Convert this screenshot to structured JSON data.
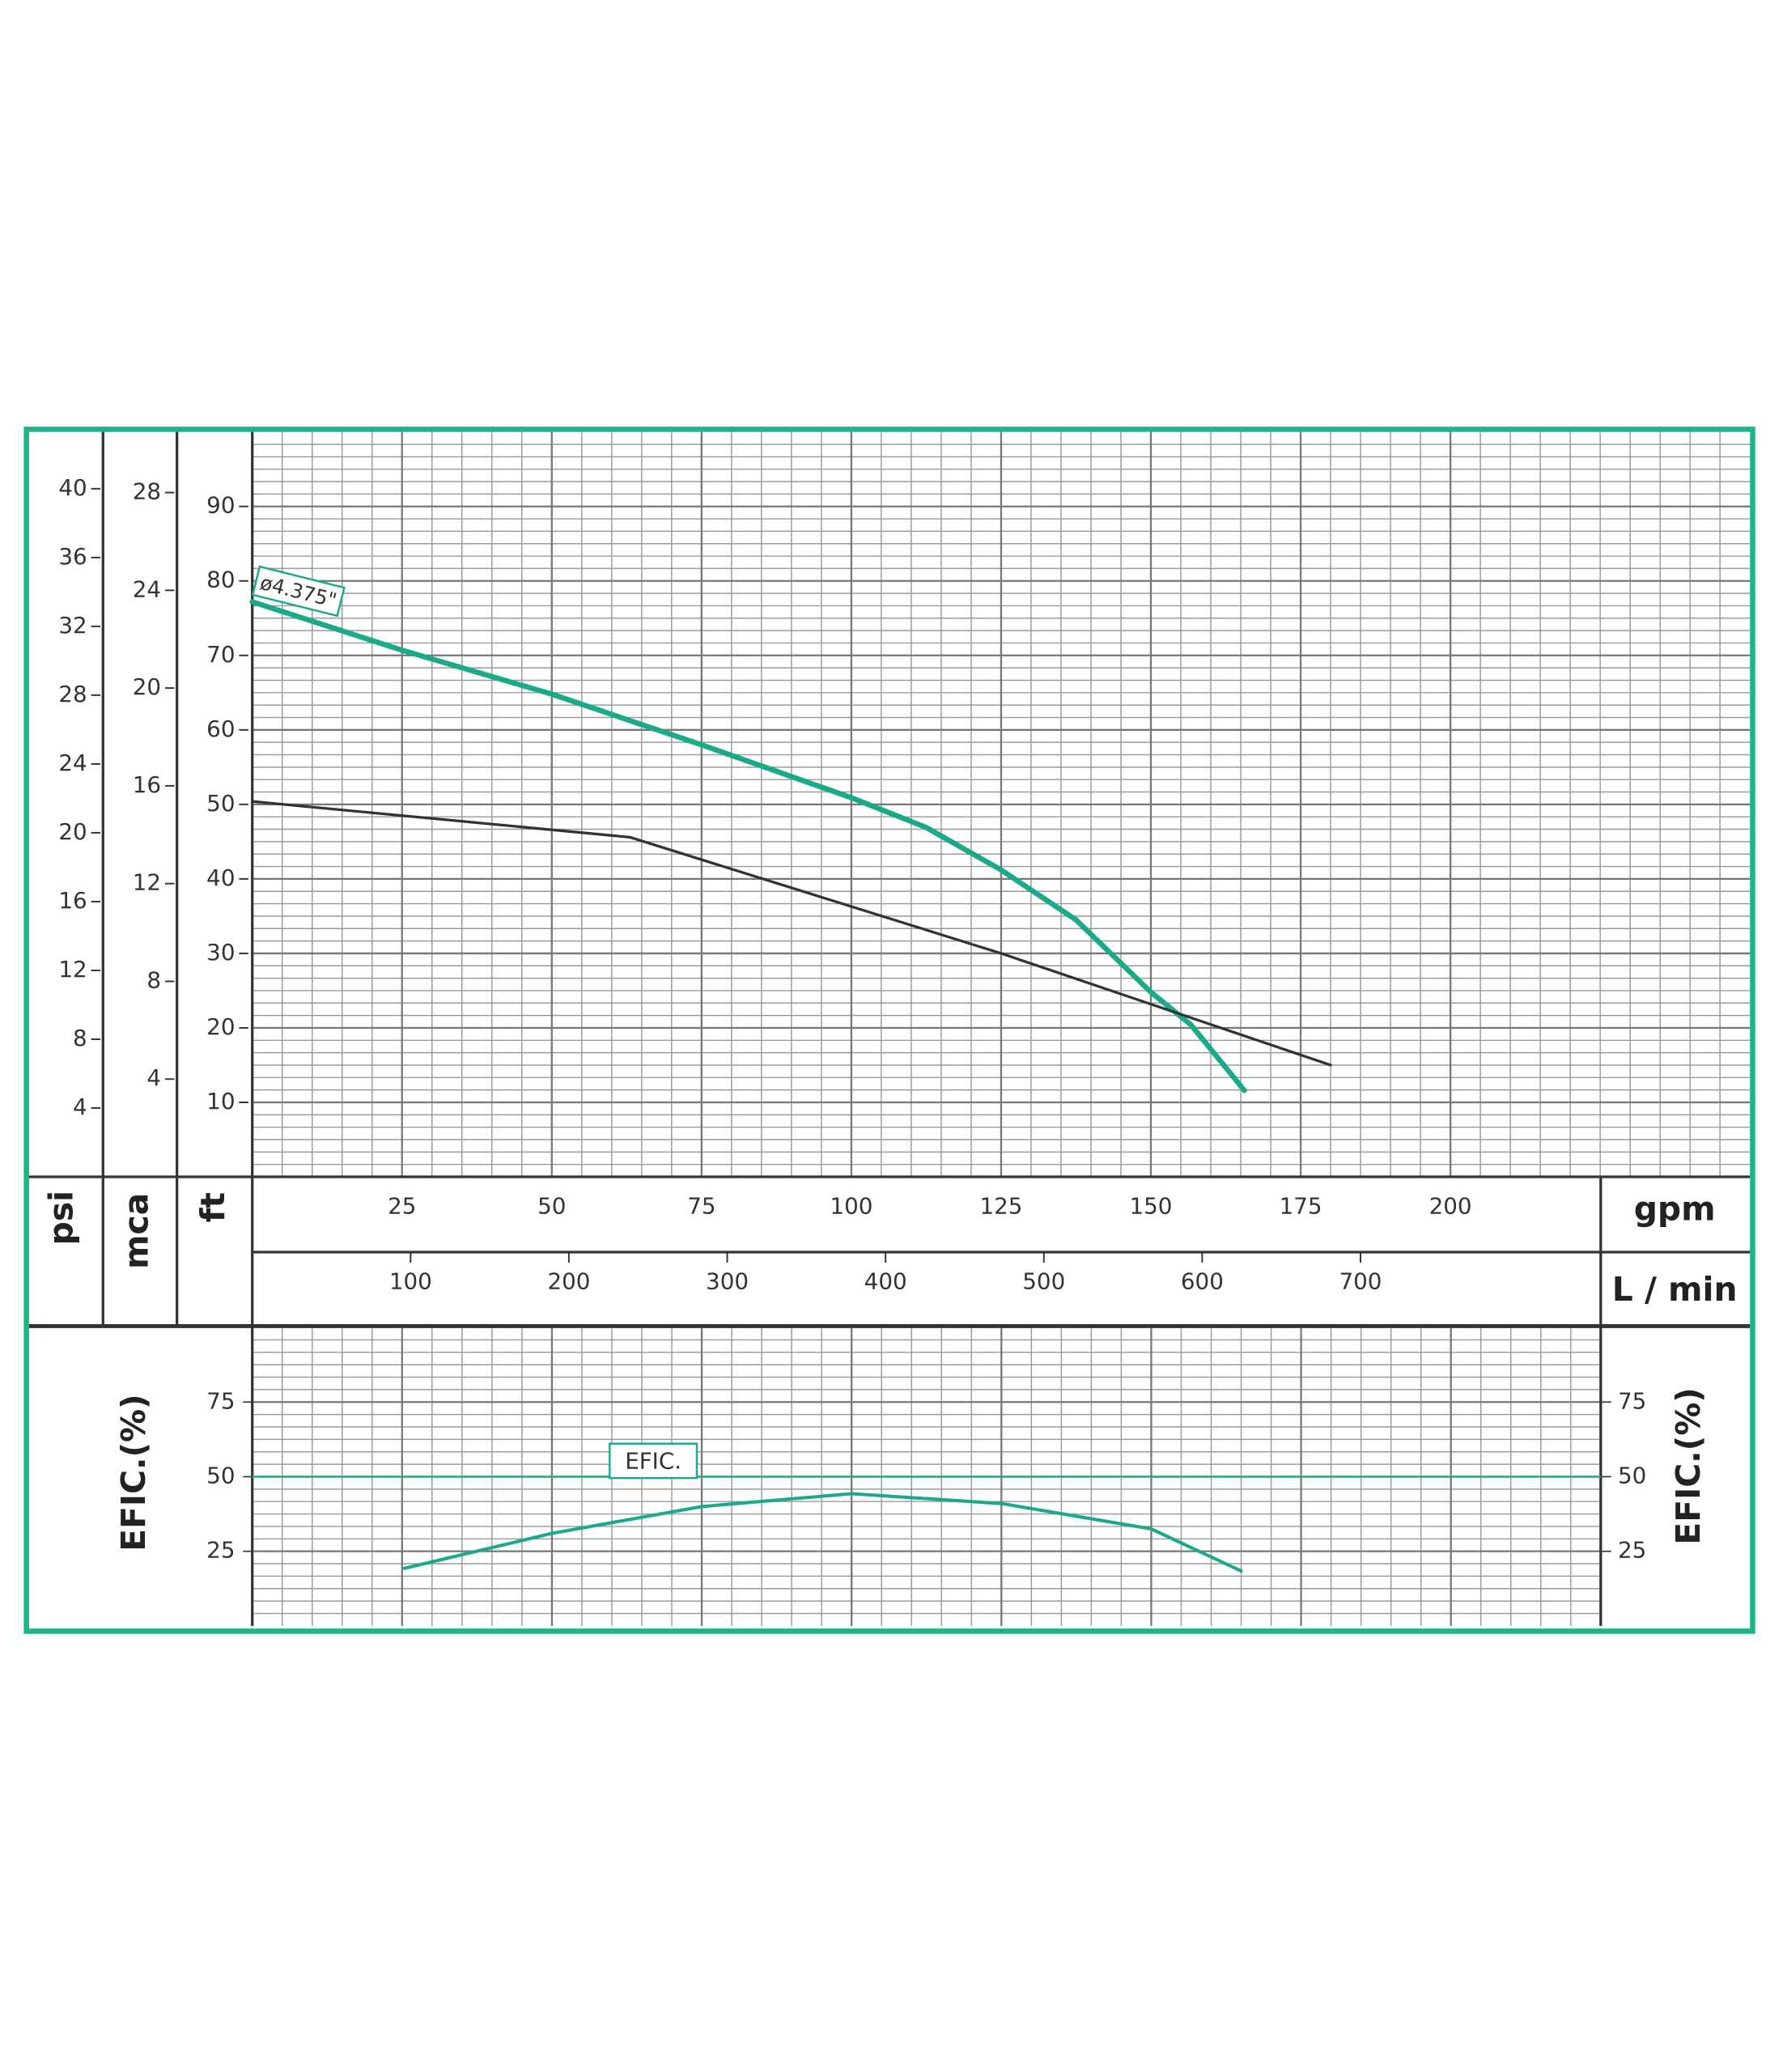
{
  "chart_data": [
    {
      "type": "line",
      "xlabel": "gpm",
      "xlim": [
        0,
        250
      ],
      "xticks": [
        25,
        50,
        75,
        100,
        125,
        150,
        175,
        200
      ],
      "x2label": "L / min",
      "x2lim": [
        0,
        946
      ],
      "x2ticks": [
        100,
        200,
        300,
        400,
        500,
        600,
        700
      ],
      "ylabel": "ft",
      "ylim": [
        0,
        100
      ],
      "yticks": [
        10,
        20,
        30,
        40,
        50,
        60,
        70,
        80,
        90
      ],
      "y2label": "mca",
      "y2lim": [
        0,
        30.48
      ],
      "y2ticks": [
        4,
        8,
        12,
        16,
        20,
        24,
        28
      ],
      "y3label": "psi",
      "y3lim": [
        0,
        43.3
      ],
      "y3ticks": [
        4,
        8,
        12,
        16,
        20,
        24,
        28,
        32,
        36,
        40
      ],
      "grid": true,
      "series": [
        {
          "name": "ø4.375\"",
          "color": "#1aaa8a",
          "x": [
            0,
            25,
            50,
            75,
            100,
            112.5,
            125,
            137.5,
            150,
            156.7,
            165.6
          ],
          "values": [
            77.2,
            70.7,
            64.8,
            58,
            50.9,
            46.9,
            41.2,
            34.5,
            24.8,
            20.4,
            11.6
          ]
        },
        {
          "color": "#333333",
          "x": [
            0,
            63,
            125,
            180
          ],
          "values": [
            50.4,
            45.6,
            30,
            15
          ]
        }
      ]
    },
    {
      "type": "line",
      "ylabel": "EFIC.(%)",
      "xlim": [
        0,
        225
      ],
      "ylim": [
        0,
        100
      ],
      "yticks": [
        25,
        50,
        75
      ],
      "grid": true,
      "hline": 50,
      "series": [
        {
          "name": "EFIC.",
          "color": "#1aaa8a",
          "x": [
            25.4,
            50,
            75,
            100,
            125,
            150,
            165
          ],
          "values": [
            19.3,
            31,
            40,
            44.3,
            41,
            32.5,
            18.4
          ]
        }
      ]
    }
  ]
}
